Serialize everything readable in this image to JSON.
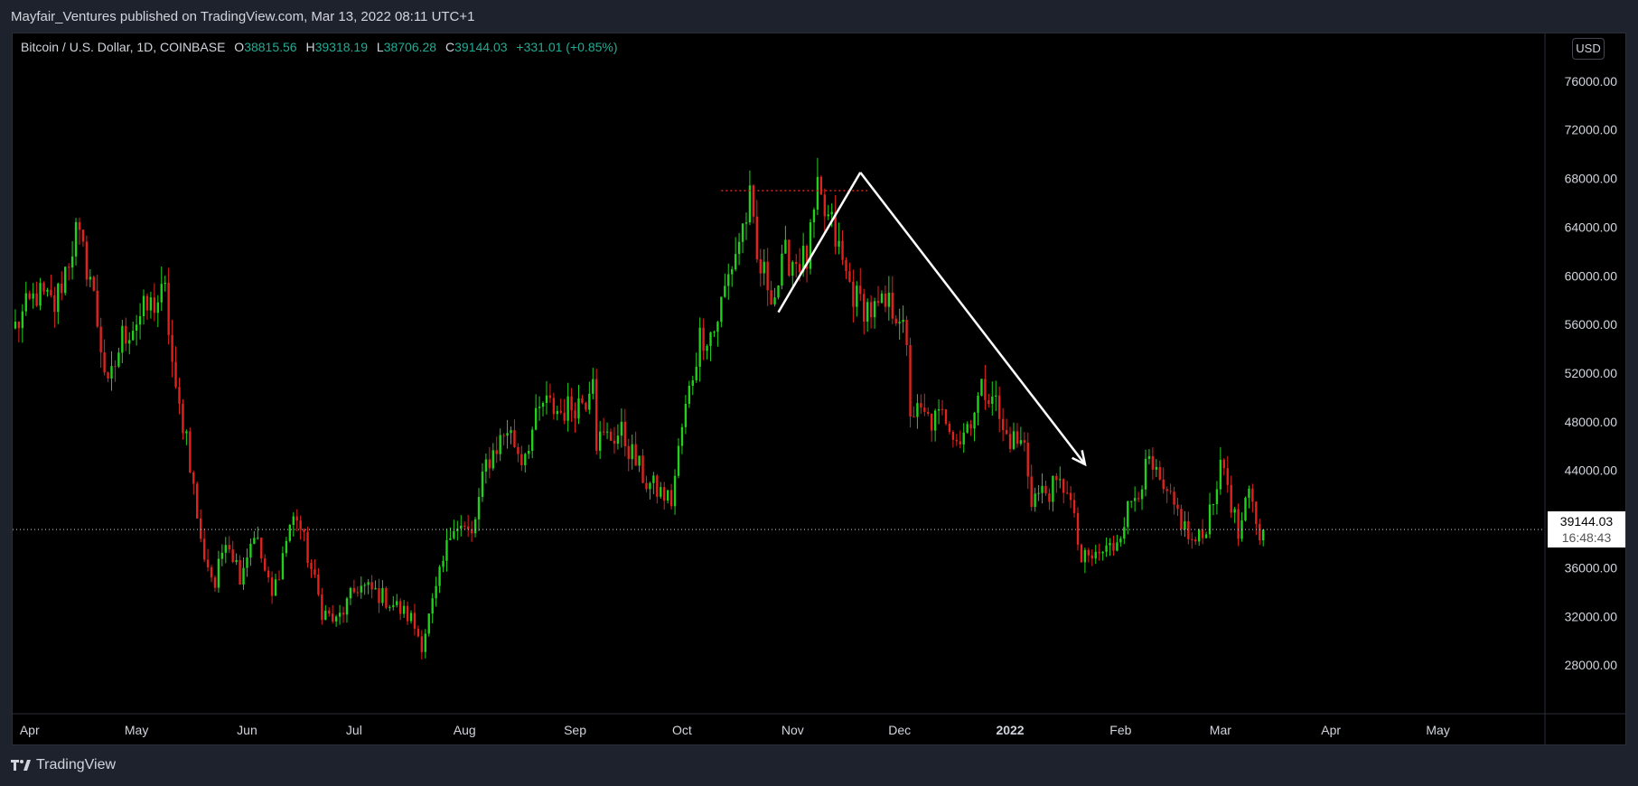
{
  "header": {
    "publish_line": "Mayfair_Ventures published on TradingView.com, Mar 13, 2022 08:11 UTC+1"
  },
  "legend": {
    "symbol": "Bitcoin / U.S. Dollar, 1D, COINBASE",
    "open_label": "O",
    "open_value": "38815.56",
    "high_label": "H",
    "high_value": "39318.19",
    "low_label": "L",
    "low_value": "38706.28",
    "close_label": "C",
    "close_value": "39144.03",
    "change": "+331.01 (+0.85%)"
  },
  "price_scale": {
    "currency_button": "USD"
  },
  "last_price": {
    "value": "39144.03",
    "countdown": "16:48:43"
  },
  "footer": {
    "brand": "TradingView"
  },
  "colors": {
    "up": "#22d11b",
    "down": "#e0231d",
    "background": "#000000",
    "frame": "#1e222d",
    "annotation": "#ffffff",
    "resistance": "#e0231d"
  },
  "chart_data": {
    "type": "candlestick",
    "title": "",
    "ylim": [
      24000,
      80000
    ],
    "y_ticks": [
      28000,
      32000,
      36000,
      40000,
      44000,
      48000,
      52000,
      56000,
      60000,
      64000,
      68000,
      72000,
      76000
    ],
    "y_tick_labels": [
      "28000.00",
      "32000.00",
      "36000.00",
      "40000.00",
      "44000.00",
      "48000.00",
      "52000.00",
      "56000.00",
      "60000.00",
      "64000.00",
      "68000.00",
      "72000.00",
      "76000.00"
    ],
    "x_range": [
      "2021-03-27",
      "2022-05-31"
    ],
    "x_ticks": [
      {
        "date": "2021-04-01",
        "label": "Apr",
        "bold": false
      },
      {
        "date": "2021-05-01",
        "label": "May",
        "bold": false
      },
      {
        "date": "2021-06-01",
        "label": "Jun",
        "bold": false
      },
      {
        "date": "2021-07-01",
        "label": "Jul",
        "bold": false
      },
      {
        "date": "2021-08-01",
        "label": "Aug",
        "bold": false
      },
      {
        "date": "2021-09-01",
        "label": "Sep",
        "bold": false
      },
      {
        "date": "2021-10-01",
        "label": "Oct",
        "bold": false
      },
      {
        "date": "2021-11-01",
        "label": "Nov",
        "bold": false
      },
      {
        "date": "2021-12-01",
        "label": "Dec",
        "bold": false
      },
      {
        "date": "2022-01-01",
        "label": "2022",
        "bold": true
      },
      {
        "date": "2022-02-01",
        "label": "Feb",
        "bold": false
      },
      {
        "date": "2022-03-01",
        "label": "Mar",
        "bold": false
      },
      {
        "date": "2022-04-01",
        "label": "Apr",
        "bold": false
      },
      {
        "date": "2022-05-01",
        "label": "May",
        "bold": false
      }
    ],
    "series": [
      {
        "name": "Bitcoin / U.S. Dollar",
        "start_date": "2021-03-28",
        "interval": "1D",
        "close_path": [
          [
            "2021-03-28",
            55800
          ],
          [
            "2021-04-03",
            58500
          ],
          [
            "2021-04-08",
            57500
          ],
          [
            "2021-04-14",
            63500
          ],
          [
            "2021-04-18",
            60000
          ],
          [
            "2021-04-23",
            50500
          ],
          [
            "2021-04-27",
            55000
          ],
          [
            "2021-05-03",
            57000
          ],
          [
            "2021-05-09",
            58500
          ],
          [
            "2021-05-12",
            50000
          ],
          [
            "2021-05-15",
            47000
          ],
          [
            "2021-05-19",
            38000
          ],
          [
            "2021-05-23",
            34500
          ],
          [
            "2021-05-26",
            38800
          ],
          [
            "2021-05-30",
            35500
          ],
          [
            "2021-06-03",
            39000
          ],
          [
            "2021-06-08",
            33500
          ],
          [
            "2021-06-13",
            39500
          ],
          [
            "2021-06-15",
            40300
          ],
          [
            "2021-06-22",
            32500
          ],
          [
            "2021-06-26",
            31500
          ],
          [
            "2021-07-02",
            34500
          ],
          [
            "2021-07-07",
            34000
          ],
          [
            "2021-07-12",
            33000
          ],
          [
            "2021-07-17",
            31800
          ],
          [
            "2021-07-20",
            29800
          ],
          [
            "2021-07-24",
            34000
          ],
          [
            "2021-07-29",
            40000
          ],
          [
            "2021-08-03",
            38500
          ],
          [
            "2021-08-07",
            44500
          ],
          [
            "2021-08-13",
            47500
          ],
          [
            "2021-08-17",
            45000
          ],
          [
            "2021-08-23",
            49500
          ],
          [
            "2021-08-28",
            48800
          ],
          [
            "2021-09-04",
            50000
          ],
          [
            "2021-09-06",
            52500
          ],
          [
            "2021-09-07",
            46500
          ],
          [
            "2021-09-14",
            47000
          ],
          [
            "2021-09-21",
            43000
          ],
          [
            "2021-09-28",
            41500
          ],
          [
            "2021-10-01",
            47500
          ],
          [
            "2021-10-06",
            55000
          ],
          [
            "2021-10-10",
            55500
          ],
          [
            "2021-10-15",
            61000
          ],
          [
            "2021-10-20",
            66000
          ],
          [
            "2021-10-22",
            61000
          ],
          [
            "2021-10-27",
            58500
          ],
          [
            "2021-10-30",
            61500
          ],
          [
            "2021-11-05",
            61200
          ],
          [
            "2021-11-08",
            66500
          ],
          [
            "2021-11-10",
            65000
          ],
          [
            "2021-11-12",
            64000
          ],
          [
            "2021-11-16",
            60000
          ],
          [
            "2021-11-19",
            58000
          ],
          [
            "2021-11-24",
            57000
          ],
          [
            "2021-11-28",
            57500
          ],
          [
            "2021-12-01",
            57000
          ],
          [
            "2021-12-03",
            53500
          ],
          [
            "2021-12-04",
            49000
          ],
          [
            "2021-12-10",
            48000
          ],
          [
            "2021-12-14",
            48500
          ],
          [
            "2021-12-18",
            46500
          ],
          [
            "2021-12-24",
            50500
          ],
          [
            "2021-12-27",
            50700
          ],
          [
            "2021-12-30",
            47000
          ],
          [
            "2022-01-05",
            46000
          ],
          [
            "2022-01-07",
            41800
          ],
          [
            "2022-01-13",
            42500
          ],
          [
            "2022-01-17",
            42800
          ],
          [
            "2022-01-21",
            36500
          ],
          [
            "2022-01-24",
            36800
          ],
          [
            "2022-01-30",
            37800
          ],
          [
            "2022-02-04",
            41500
          ],
          [
            "2022-02-09",
            44500
          ],
          [
            "2022-02-13",
            42000
          ],
          [
            "2022-02-17",
            40500
          ],
          [
            "2022-02-21",
            38000
          ],
          [
            "2022-02-24",
            38500
          ],
          [
            "2022-02-28",
            43200
          ],
          [
            "2022-03-02",
            44400
          ],
          [
            "2022-03-06",
            38500
          ],
          [
            "2022-03-09",
            41900
          ],
          [
            "2022-03-12",
            38800
          ],
          [
            "2022-03-13",
            39144
          ]
        ]
      }
    ],
    "last_price": 39144.03,
    "annotations": [
      {
        "type": "resistance-dotted-line",
        "price": 67000,
        "from": "2021-10-12",
        "to": "2021-11-22"
      },
      {
        "type": "trend-line",
        "from": [
          "2021-10-28",
          57000
        ],
        "to": [
          "2021-11-20",
          68500
        ]
      },
      {
        "type": "arrow",
        "from": [
          "2021-11-20",
          68500
        ],
        "to": [
          "2022-01-22",
          44500
        ]
      }
    ]
  }
}
